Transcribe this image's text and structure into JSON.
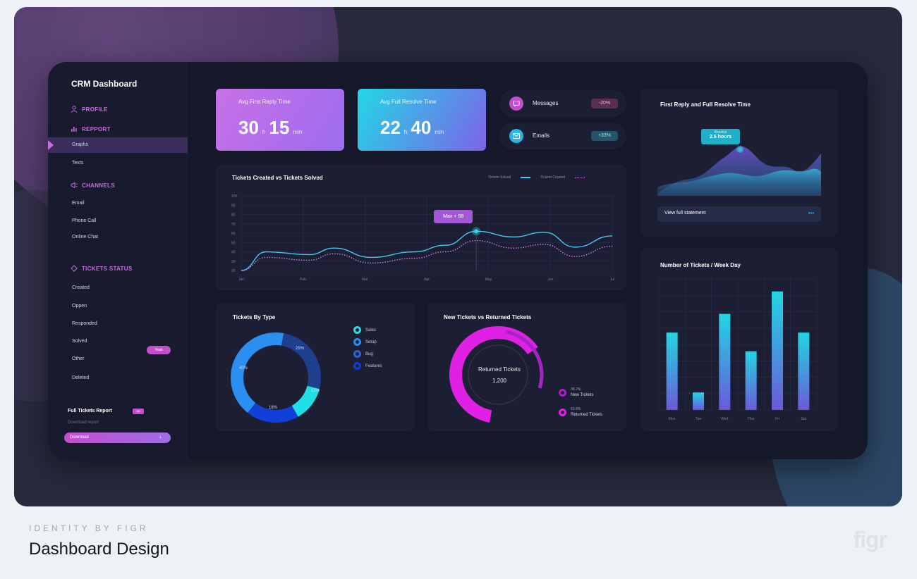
{
  "sidebar": {
    "brand": "CRM Dashboard",
    "sections": {
      "profile": "PROFILE",
      "report": "REPPORT",
      "channels": "CHANNELS",
      "status": "TICKETS STATUS"
    },
    "report_items": [
      "Graphs",
      "Texts"
    ],
    "channel_items": [
      "Email",
      "Phone Call",
      "Online Chat"
    ],
    "status_items": [
      "Created",
      "Oppen",
      "Responded",
      "Solved",
      "Other",
      "Deleted"
    ],
    "solved_pill": "Yeah",
    "full_report_title": "Full Tickets Report",
    "full_report_badge": "NE",
    "full_report_sub": "Download report",
    "download_label": "Download",
    "download_arrow": "⇣"
  },
  "kpis": [
    {
      "label": "Avg First Reply Time",
      "hours": "30",
      "h_unit": "h",
      "mins": "15",
      "m_unit": "min",
      "colors": [
        "#c870e6",
        "#9c6df0"
      ]
    },
    {
      "label": "Avg Full Resolve Time",
      "hours": "22",
      "h_unit": "h",
      "mins": "40",
      "m_unit": "min",
      "colors": [
        "#22d7e6",
        "#7d63e8"
      ]
    }
  ],
  "channels_stats": [
    {
      "name": "Messages",
      "badge": "-20%",
      "icon": "message-icon",
      "color": "#c34fce",
      "badge_bg": "#5a2e4d"
    },
    {
      "name": "Emails",
      "badge": "+33%",
      "icon": "email-icon",
      "color": "#2ab3e6",
      "badge_bg": "#25536a"
    }
  ],
  "line_chart": {
    "title": "Tickets Created vs Tickets Solved",
    "legend_solved": "Tickets Solved",
    "legend_created": "Tickets Created",
    "tooltip": "Max + 68",
    "colors": {
      "solved": "#46c7ef",
      "created": "#d17be6"
    }
  },
  "reply_chart": {
    "title": "First Reply and Full Resolve Time",
    "tooltip_label": "Resolve",
    "tooltip_value": "2.5 hours",
    "link": "View full statement",
    "link_icon": "•••"
  },
  "donut": {
    "title": "Tickets By Type",
    "labels": {
      "a": "25%",
      "b": "12%",
      "c": "40%",
      "d": "18%"
    }
  },
  "returned": {
    "title": "New Tickets vs Returned Tickets",
    "center_label": "Returned Tickets",
    "center_value": "1,200",
    "legend": [
      {
        "pct": "38.2%",
        "name": "New Tickets"
      },
      {
        "pct": "63.8%",
        "name": "Returned Tickets"
      }
    ]
  },
  "weekday": {
    "title": "Number of Tickets / Week Day"
  },
  "footer": {
    "tag": "IDENTITY BY FIGR",
    "title": "Dashboard Design",
    "logo": "figr"
  },
  "chart_data": [
    {
      "type": "line",
      "title": "Tickets Created vs Tickets Solved",
      "x": [
        "Jan",
        "Feb",
        "Mar",
        "Apr",
        "May",
        "Jun",
        "Jul"
      ],
      "y_ticks": [
        20,
        30,
        40,
        50,
        60,
        70,
        80,
        90,
        100
      ],
      "ylim": [
        20,
        100
      ],
      "series": [
        {
          "name": "Tickets Solved",
          "points": [
            [
              0,
              20
            ],
            [
              0.4,
              40
            ],
            [
              1.1,
              37
            ],
            [
              1.5,
              44
            ],
            [
              2.1,
              34
            ],
            [
              2.8,
              40
            ],
            [
              3.3,
              47
            ],
            [
              3.8,
              62
            ],
            [
              4.4,
              56
            ],
            [
              4.9,
              61
            ],
            [
              5.4,
              45
            ],
            [
              6.0,
              57
            ]
          ]
        },
        {
          "name": "Tickets Created",
          "points": [
            [
              0,
              20
            ],
            [
              0.4,
              34
            ],
            [
              1.1,
              31
            ],
            [
              1.5,
              38
            ],
            [
              2.1,
              28
            ],
            [
              2.8,
              33
            ],
            [
              3.3,
              40
            ],
            [
              3.8,
              52
            ],
            [
              4.4,
              44
            ],
            [
              4.9,
              48
            ],
            [
              5.4,
              35
            ],
            [
              6.0,
              46
            ]
          ]
        }
      ]
    },
    {
      "type": "pie",
      "title": "Tickets By Type",
      "categories": [
        "Sales",
        "Setup",
        "Bug",
        "Features"
      ],
      "values": [
        25,
        12,
        18,
        40
      ],
      "colors": [
        "#1e3f8e",
        "#1ee0e6",
        "#1040d8",
        "#2a8ff0"
      ]
    },
    {
      "type": "pie",
      "title": "New Tickets vs Returned Tickets",
      "categories": [
        "New Tickets",
        "Returned Tickets"
      ],
      "values": [
        38.2,
        63.8
      ],
      "colors": [
        "#a523c7",
        "#e021e5"
      ]
    },
    {
      "type": "bar",
      "title": "Number of Tickets / Week Day",
      "categories": [
        "Mon",
        "Tue",
        "Wed",
        "Thur",
        "Fri",
        "Sat"
      ],
      "values": [
        62,
        14,
        77,
        47,
        95,
        62
      ],
      "ylim": [
        0,
        105
      ]
    }
  ]
}
